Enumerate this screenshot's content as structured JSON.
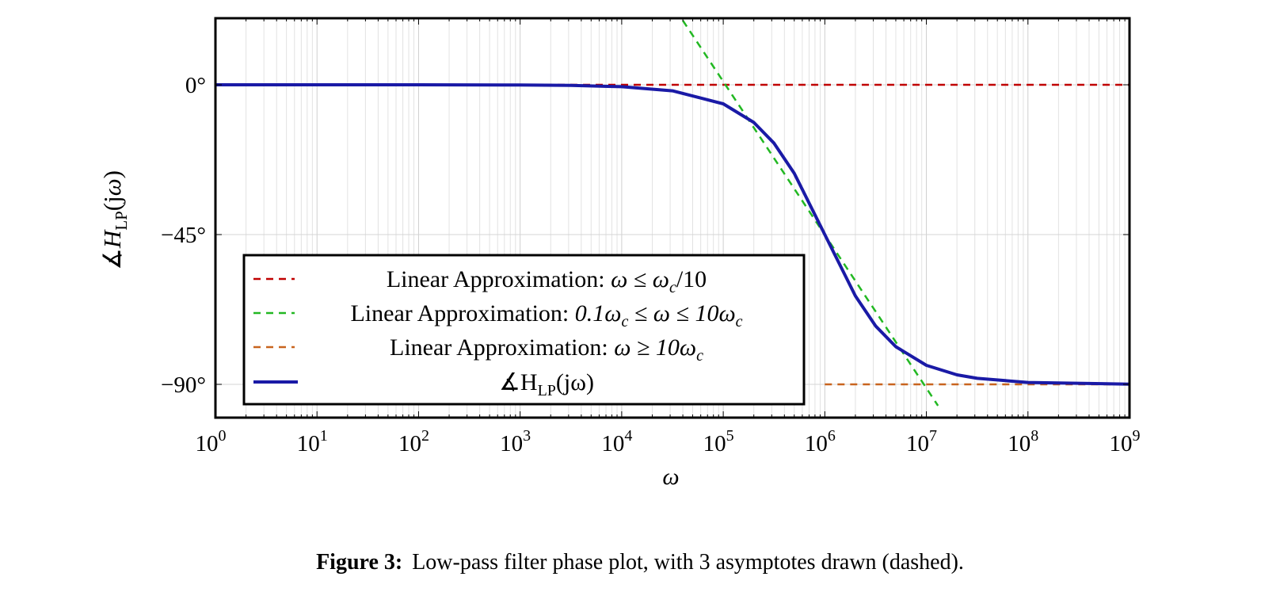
{
  "chart_data": {
    "type": "line",
    "title": "",
    "xlabel": "ω",
    "ylabel": "∡H_LP(jω)",
    "x_scale": "log",
    "xlim": [
      1,
      1000000000
    ],
    "ylim": [
      -100,
      20
    ],
    "grid": true,
    "legend_position": "bottom-left",
    "x_tick_labels": [
      {
        "base": "10",
        "exp": "0"
      },
      {
        "base": "10",
        "exp": "1"
      },
      {
        "base": "10",
        "exp": "2"
      },
      {
        "base": "10",
        "exp": "3"
      },
      {
        "base": "10",
        "exp": "4"
      },
      {
        "base": "10",
        "exp": "5"
      },
      {
        "base": "10",
        "exp": "6"
      },
      {
        "base": "10",
        "exp": "7"
      },
      {
        "base": "10",
        "exp": "8"
      },
      {
        "base": "10",
        "exp": "9"
      }
    ],
    "y_ticks": [
      0,
      -45,
      -90
    ],
    "y_tick_labels": [
      "0°",
      "−45°",
      "−90°"
    ],
    "series": [
      {
        "name": "Linear Approximation: ω ≤ ω_c/10",
        "style": "dashed",
        "color": "#c00000",
        "x": [
          1,
          1000000000
        ],
        "y": [
          0,
          0
        ]
      },
      {
        "name": "Linear Approximation: 0.1ω_c ≤ ω ≤ 10ω_c",
        "style": "dashed",
        "color": "#22b822",
        "x": [
          40000,
          13000000
        ],
        "y": [
          19.3,
          -96.4
        ]
      },
      {
        "name": "Linear Approximation: ω ≥ 10ω_c",
        "style": "dashed",
        "color": "#c8641e",
        "x": [
          1000000,
          1000000000
        ],
        "y": [
          -90,
          -90
        ]
      },
      {
        "name": "∡H_LP(jω)",
        "style": "solid",
        "color": "#1a1aa6",
        "x": [
          1,
          10,
          100,
          1000,
          3162,
          10000,
          31623,
          100000,
          200000,
          316228,
          500000,
          1000000,
          2000000,
          3162278,
          5000000,
          10000000,
          20000000,
          31622777,
          100000000,
          1000000000
        ],
        "y": [
          0,
          0,
          0,
          -0.06,
          -0.18,
          -0.57,
          -1.81,
          -5.71,
          -11.31,
          -17.55,
          -26.57,
          -45,
          -63.43,
          -72.45,
          -78.69,
          -84.29,
          -87.14,
          -88.19,
          -89.43,
          -89.94
        ]
      }
    ]
  },
  "legend": {
    "entries": [
      {
        "prefix": "Linear Approximation: ",
        "math": "ω ≤ ω",
        "sub": "c",
        "post": "/10"
      },
      {
        "prefix": "Linear Approximation: ",
        "math": "0.1ω",
        "sub": "c",
        "mid": " ≤ ω ≤ 10ω",
        "sub2": "c"
      },
      {
        "prefix": "Linear Approximation: ",
        "math": "ω ≥ 10ω",
        "sub": "c"
      },
      {
        "prefix": "",
        "math": "∡H",
        "sub": "LP",
        "post": "(jω)"
      }
    ]
  },
  "caption": {
    "label": "Figure 3:",
    "text": "Low-pass filter phase plot, with 3 asymptotes drawn (dashed)."
  }
}
